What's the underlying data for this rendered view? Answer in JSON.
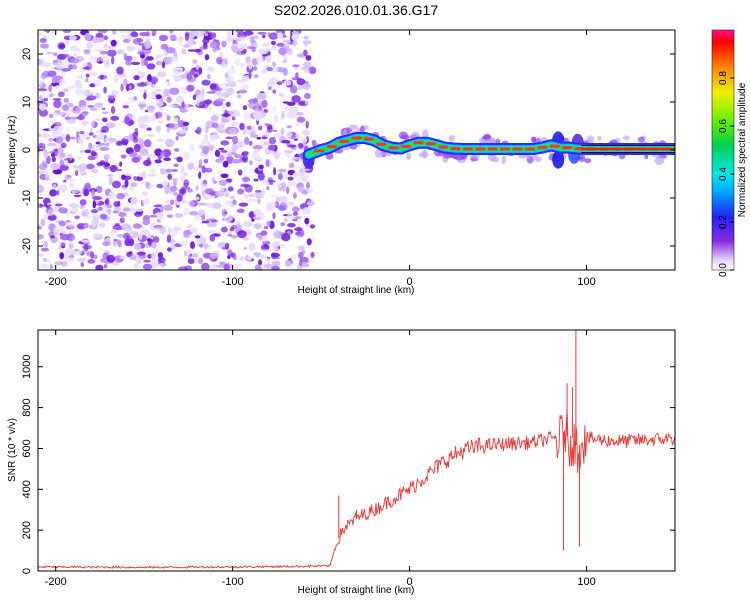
{
  "title": "S202.2026.010.01.36.G17",
  "chart_data": [
    {
      "type": "heatmap",
      "xlabel": "Height of straight line (km)",
      "ylabel": "Frequency (Hz)",
      "xlim": [
        -210,
        150
      ],
      "ylim": [
        -25,
        25
      ],
      "x_ticks": [
        -200,
        -100,
        0,
        100
      ],
      "y_ticks": [
        -20,
        -10,
        0,
        10,
        20
      ],
      "noise_region_x": [
        -210,
        -57
      ],
      "signal_ridge": {
        "x": [
          -57,
          -50,
          -45,
          -40,
          -35,
          -30,
          -25,
          -20,
          -15,
          -10,
          -5,
          0,
          5,
          10,
          15,
          20,
          25,
          30,
          40,
          50,
          60,
          70,
          75,
          80,
          85,
          90,
          95,
          100,
          110,
          120,
          130,
          140,
          150
        ],
        "y": [
          -1,
          0,
          0.5,
          1.5,
          2,
          2.5,
          2.5,
          2,
          1,
          0.5,
          0.3,
          1,
          1.5,
          1.5,
          1,
          0.5,
          0.3,
          0.2,
          0.2,
          0.2,
          0.2,
          0.2,
          0.5,
          1,
          0.5,
          0.5,
          0.3,
          0.2,
          0.2,
          0.2,
          0.2,
          0.2,
          0.2
        ]
      },
      "colorbar": {
        "label": "Normalized spectral amplitude",
        "range": [
          0,
          1
        ],
        "ticks": [
          "0.0",
          "0.2",
          "0.4",
          "0.6",
          "0.8"
        ],
        "tick_values": [
          0,
          0.2,
          0.4,
          0.6,
          0.8
        ]
      }
    },
    {
      "type": "line",
      "xlabel": "Height of straight line (km)",
      "ylabel": "SNR (10 * v/v)",
      "xlim": [
        -210,
        150
      ],
      "ylim": [
        0,
        1180
      ],
      "x_ticks": [
        -200,
        -100,
        0,
        100
      ],
      "y_ticks": [
        0,
        200,
        400,
        600,
        800,
        1000
      ],
      "series": [
        {
          "name": "SNR",
          "color": "#e83838",
          "envelope_x": [
            -210,
            -150,
            -100,
            -70,
            -45,
            -42,
            -38,
            -30,
            -20,
            -10,
            0,
            10,
            20,
            30,
            40,
            50,
            60,
            70,
            80,
            85,
            88,
            90,
            92,
            95,
            98,
            100,
            110,
            120,
            130,
            140,
            150
          ],
          "envelope_y": [
            20,
            18,
            20,
            22,
            25,
            120,
            200,
            260,
            300,
            350,
            400,
            470,
            540,
            590,
            610,
            620,
            625,
            630,
            650,
            640,
            700,
            620,
            650,
            600,
            650,
            650,
            640,
            635,
            640,
            645,
            650
          ],
          "spikes": [
            {
              "x": -40,
              "y": 370
            },
            {
              "x": -30,
              "y": 300
            },
            {
              "x": 87,
              "y": 100
            },
            {
              "x": 89,
              "y": 920
            },
            {
              "x": 94,
              "y": 1180
            },
            {
              "x": 96,
              "y": 120
            },
            {
              "x": 92,
              "y": 900
            }
          ]
        }
      ]
    }
  ]
}
